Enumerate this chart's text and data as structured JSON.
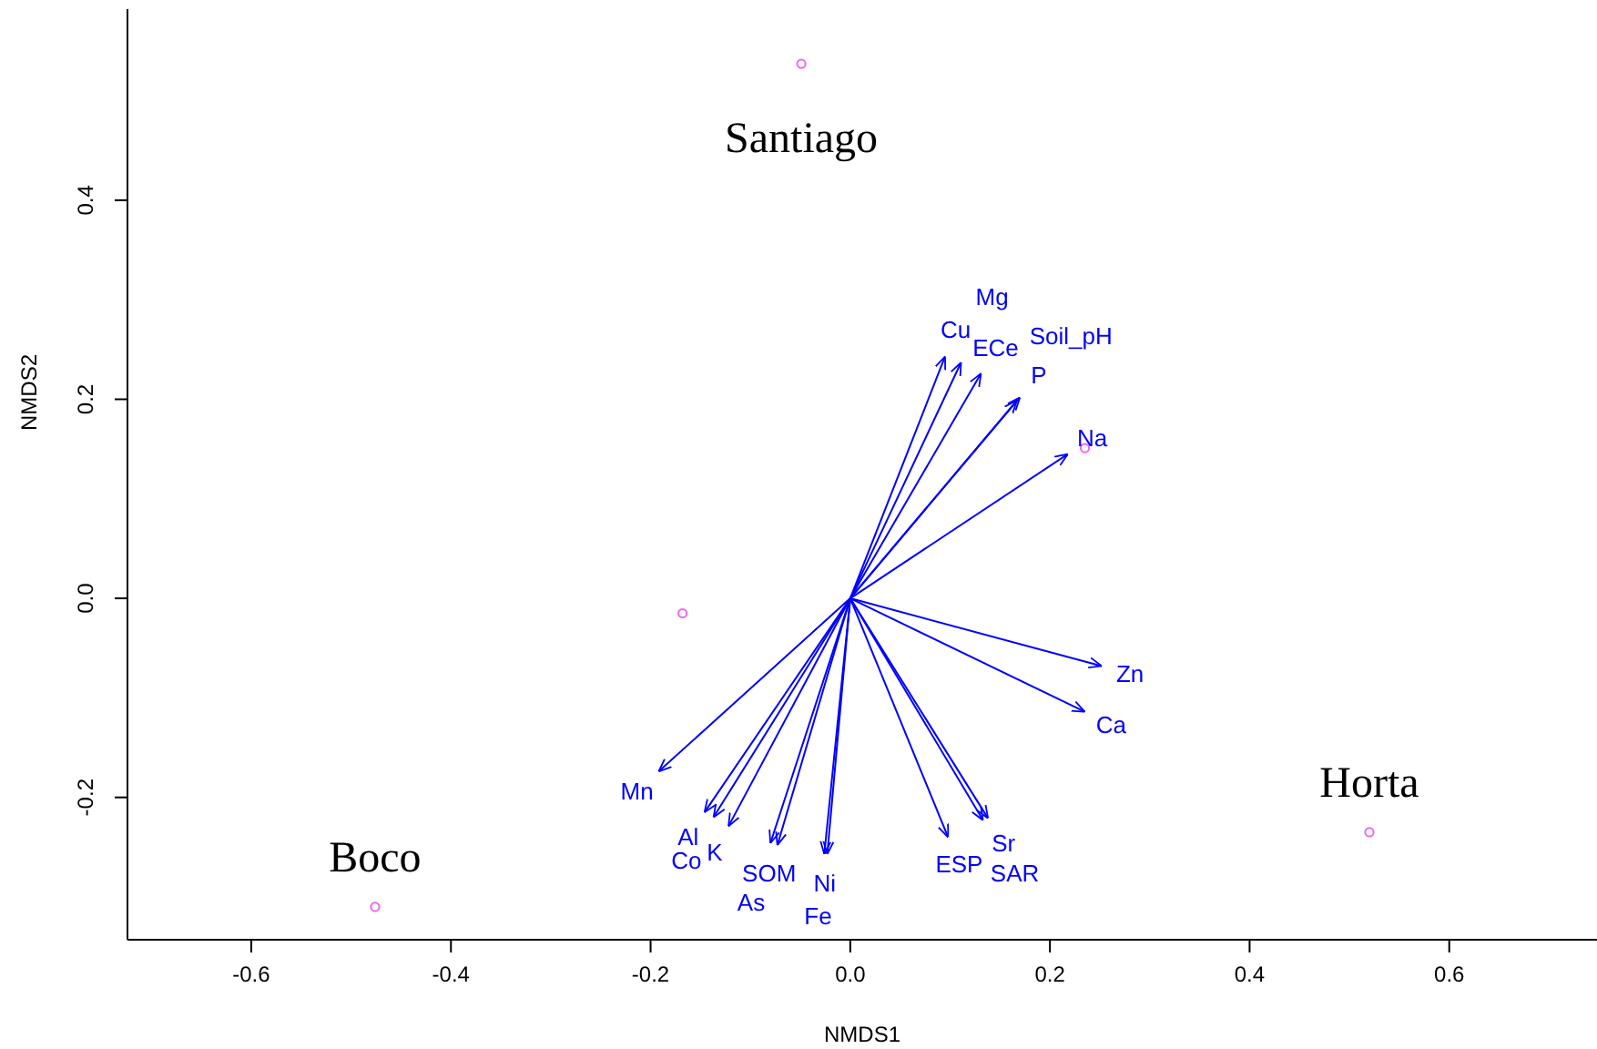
{
  "chart_data": {
    "type": "scatter",
    "xlabel": "NMDS1",
    "ylabel": "NMDS2",
    "xlim": [
      -0.724,
      0.748
    ],
    "ylim": [
      -0.343,
      0.592
    ],
    "xticks": [
      -0.6,
      -0.4,
      -0.2,
      {
        "value": 0,
        "label": "0.0"
      },
      0.2,
      0.4,
      0.6
    ],
    "yticks": [
      -0.2,
      {
        "value": 0,
        "label": "0.0"
      },
      0.2,
      0.4
    ],
    "grid": false,
    "series": [
      {
        "color": "#ee66ee",
        "marker": "circle",
        "x": [
          -0.049,
          0.235,
          -0.168,
          -0.476,
          0.52
        ],
        "values": [
          0.537,
          0.151,
          -0.015,
          -0.31,
          -0.235
        ]
      },
      {
        "type": "line",
        "name": "Cu",
        "color": "#0000ff",
        "x": [
          0,
          0.095
        ],
        "values": [
          0,
          0.243
        ]
      },
      {
        "type": "line",
        "name": "Mg",
        "color": "#0000ff",
        "x": [
          0,
          0.111
        ],
        "values": [
          0,
          0.237
        ]
      },
      {
        "type": "line",
        "name": "ECe",
        "color": "#0000ff",
        "x": [
          0,
          0.131
        ],
        "values": [
          0,
          0.226
        ]
      },
      {
        "type": "line",
        "name": "P",
        "color": "#0000ff",
        "x": [
          0,
          0.17
        ],
        "values": [
          0,
          0.202
        ]
      },
      {
        "type": "line",
        "name": "Soil_pH",
        "color": "#0000ff",
        "x": [
          0,
          0.167
        ],
        "values": [
          0,
          0.199
        ]
      },
      {
        "type": "line",
        "name": "Na",
        "color": "#0000ff",
        "x": [
          0,
          0.218
        ],
        "values": [
          0,
          0.145
        ]
      },
      {
        "type": "line",
        "name": "Zn",
        "color": "#0000ff",
        "x": [
          0,
          0.252
        ],
        "values": [
          0,
          -0.068
        ]
      },
      {
        "type": "line",
        "name": "Ca",
        "color": "#0000ff",
        "x": [
          0,
          0.235
        ],
        "values": [
          0,
          -0.114
        ]
      },
      {
        "type": "line",
        "name": "Sr",
        "color": "#0000ff",
        "x": [
          0,
          0.138
        ],
        "values": [
          0,
          -0.221
        ]
      },
      {
        "type": "line",
        "name": "SAR",
        "color": "#0000ff",
        "x": [
          0,
          0.133
        ],
        "values": [
          0,
          -0.223
        ]
      },
      {
        "type": "line",
        "name": "ESP",
        "color": "#0000ff",
        "x": [
          0,
          0.098
        ],
        "values": [
          0,
          -0.24
        ]
      },
      {
        "type": "line",
        "name": "Ni",
        "color": "#0000ff",
        "x": [
          0,
          -0.023
        ],
        "values": [
          0,
          -0.257
        ]
      },
      {
        "type": "line",
        "name": "Fe",
        "color": "#0000ff",
        "x": [
          0,
          -0.026
        ],
        "values": [
          0,
          -0.257
        ]
      },
      {
        "type": "line",
        "name": "SOM",
        "color": "#0000ff",
        "x": [
          0,
          -0.073
        ],
        "values": [
          0,
          -0.248
        ]
      },
      {
        "type": "line",
        "name": "As",
        "color": "#0000ff",
        "x": [
          0,
          -0.08
        ],
        "values": [
          0,
          -0.246
        ]
      },
      {
        "type": "line",
        "name": "K",
        "color": "#0000ff",
        "x": [
          0,
          -0.122
        ],
        "values": [
          0,
          -0.229
        ]
      },
      {
        "type": "line",
        "name": "Co",
        "color": "#0000ff",
        "x": [
          0,
          -0.137
        ],
        "values": [
          0,
          -0.22
        ]
      },
      {
        "type": "line",
        "name": "Al",
        "color": "#0000ff",
        "x": [
          0,
          -0.146
        ],
        "values": [
          0,
          -0.215
        ]
      },
      {
        "type": "line",
        "name": "Mn",
        "color": "#0000ff",
        "x": [
          0,
          -0.192
        ],
        "values": [
          0,
          -0.174
        ]
      }
    ],
    "annotations": [
      {
        "text": "Santiago",
        "x": -0.049,
        "y": 0.537
      },
      {
        "text": "Boco",
        "x": -0.476,
        "y": -0.31
      },
      {
        "text": "Horta",
        "x": 0.52,
        "y": -0.235
      }
    ]
  }
}
